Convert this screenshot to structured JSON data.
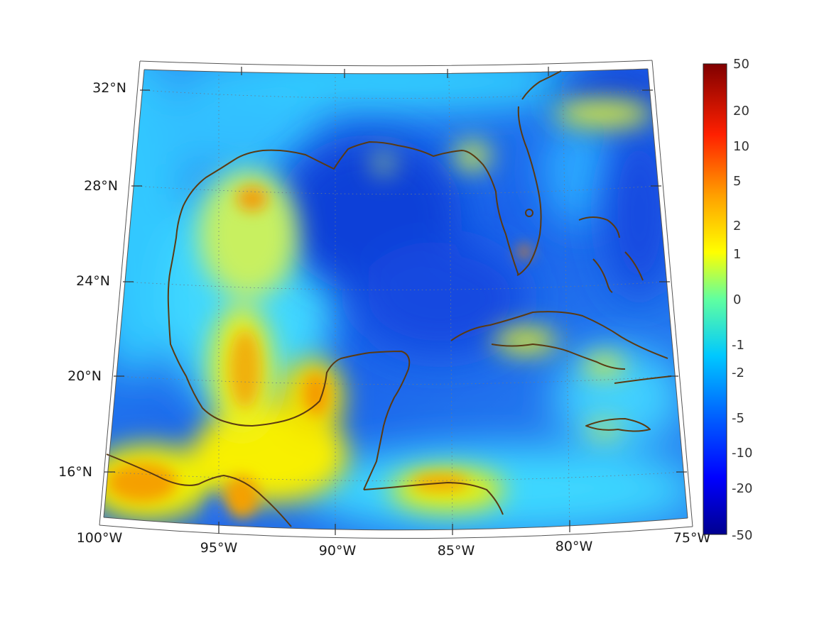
{
  "map": {
    "region": "Gulf of Mexico and Caribbean",
    "projection": "conic",
    "lon_labels": [
      "100°W",
      "95°W",
      "90°W",
      "85°W",
      "80°W",
      "75°W"
    ],
    "lat_labels": [
      "16°N",
      "20°N",
      "24°N",
      "28°N",
      "32°N"
    ],
    "coastline_color": "#5a3a12",
    "grid": "dotted"
  },
  "colorbar": {
    "labels": [
      "50",
      "20",
      "10",
      "5",
      "2",
      "1",
      "0",
      "-1",
      "-2",
      "-5",
      "-10",
      "-20",
      "-50"
    ],
    "colormap": [
      "#00008f",
      "#0000ff",
      "#0080ff",
      "#00ffff",
      "#80ff80",
      "#ffff00",
      "#ff8000",
      "#ff0000",
      "#800000"
    ]
  },
  "field_colors": {
    "deep_blue": "#1448e0",
    "mid_blue": "#2a8cf5",
    "cyan": "#30d8ff",
    "yellow": "#f5f000",
    "orange": "#f5a000"
  }
}
